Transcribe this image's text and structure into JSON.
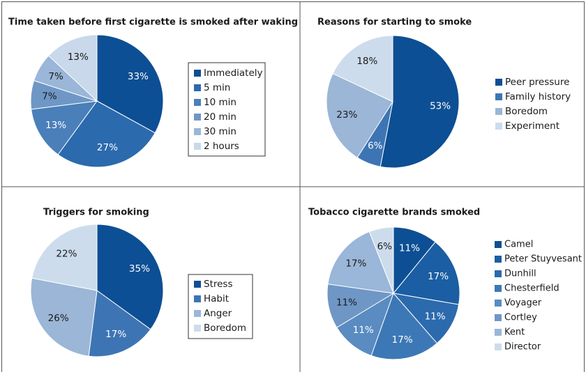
{
  "chart_data": [
    {
      "type": "pie",
      "title": "Time taken before first cigarette is smoked after waking",
      "categories": [
        "Immediately",
        "5 min",
        "10 min",
        "20 min",
        "30 min",
        "2 hours"
      ],
      "values": [
        33,
        27,
        13,
        7,
        7,
        13
      ],
      "value_labels": [
        "33%",
        "27%",
        "13%",
        "7%",
        "7%",
        "13%"
      ],
      "colors": [
        "#0d4f94",
        "#2c6aae",
        "#4a7fba",
        "#6f97c6",
        "#9ab6d8",
        "#c9d8ea"
      ]
    },
    {
      "type": "pie",
      "title": "Reasons for starting to smoke",
      "categories": [
        "Peer pressure",
        "Family history",
        "Boredom",
        "Experiment"
      ],
      "values": [
        53,
        6,
        23,
        18
      ],
      "value_labels": [
        "53%",
        "6%",
        "23%",
        "18%"
      ],
      "colors": [
        "#0d4f94",
        "#3d75b4",
        "#9bb6d6",
        "#cddcec"
      ]
    },
    {
      "type": "pie",
      "title": "Triggers for smoking",
      "categories": [
        "Stress",
        "Habit",
        "Anger",
        "Boredom"
      ],
      "values": [
        35,
        17,
        26,
        22
      ],
      "value_labels": [
        "35%",
        "17%",
        "26%",
        "22%"
      ],
      "colors": [
        "#0d4f94",
        "#3d75b4",
        "#9bb6d6",
        "#cddcec"
      ]
    },
    {
      "type": "pie",
      "title": "Tobacco cigarette brands smoked",
      "categories": [
        "Camel",
        "Peter Stuyvesant",
        "Dunhill",
        "Chesterfield",
        "Voyager",
        "Cortley",
        "Kent",
        "Director"
      ],
      "values": [
        11,
        17,
        11,
        17,
        11,
        11,
        17,
        6
      ],
      "value_labels": [
        "11%",
        "17%",
        "11%",
        "17%",
        "11%",
        "11%",
        "17%",
        "6%"
      ],
      "colors": [
        "#0d4f94",
        "#1b5ea3",
        "#2c6aae",
        "#3d78b6",
        "#5a8bc1",
        "#6f97c6",
        "#9ab6d8",
        "#cddcec"
      ]
    }
  ]
}
